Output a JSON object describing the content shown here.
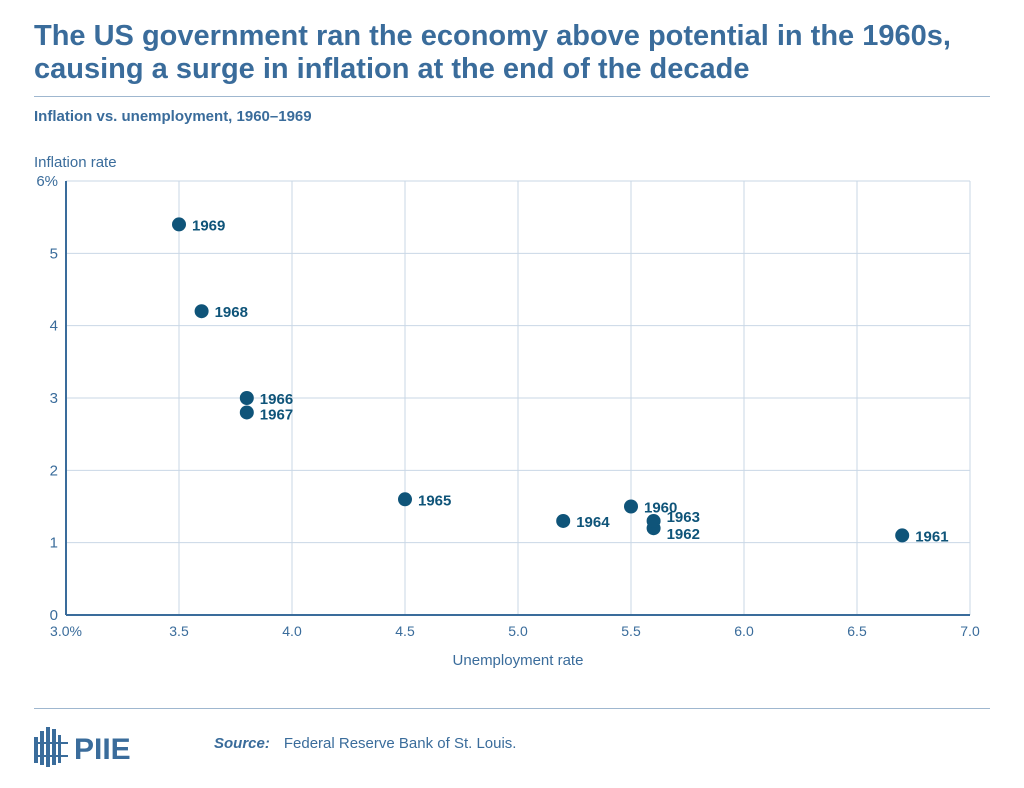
{
  "title": "The US government ran the economy above potential in the 1960s, causing a surge in inflation at the end of the decade",
  "subtitle": "Inflation vs. unemployment, 1960–1969",
  "colors": {
    "title": "#3a6c9b",
    "points": "#0f5479",
    "grid": "#c9d7e6"
  },
  "chart_data": {
    "type": "scatter",
    "xlabel": "Unemployment rate",
    "ylabel": "Inflation rate",
    "xlim": [
      3.0,
      7.0
    ],
    "ylim": [
      0,
      6
    ],
    "x_ticks": [
      3.0,
      3.5,
      4.0,
      4.5,
      5.0,
      5.5,
      6.0,
      6.5,
      7.0
    ],
    "x_tick_labels": [
      "3.0%",
      "3.5",
      "4.0",
      "4.5",
      "5.0",
      "5.5",
      "6.0",
      "6.5",
      "7.0"
    ],
    "y_ticks": [
      0,
      1,
      2,
      3,
      4,
      5,
      6
    ],
    "y_tick_labels": [
      "0",
      "1",
      "2",
      "3",
      "4",
      "5",
      "6%"
    ],
    "grid": true,
    "points": [
      {
        "label": "1960",
        "x": 5.5,
        "y": 1.5
      },
      {
        "label": "1961",
        "x": 6.7,
        "y": 1.1
      },
      {
        "label": "1962",
        "x": 5.6,
        "y": 1.2
      },
      {
        "label": "1963",
        "x": 5.6,
        "y": 1.3
      },
      {
        "label": "1964",
        "x": 5.2,
        "y": 1.3
      },
      {
        "label": "1965",
        "x": 4.5,
        "y": 1.6
      },
      {
        "label": "1966",
        "x": 3.8,
        "y": 3.0
      },
      {
        "label": "1967",
        "x": 3.8,
        "y": 2.8
      },
      {
        "label": "1968",
        "x": 3.6,
        "y": 4.2
      },
      {
        "label": "1969",
        "x": 3.5,
        "y": 5.4
      }
    ]
  },
  "footer": {
    "logo": "PIIE",
    "source_label": "Source:",
    "source_text": "Federal Reserve Bank of St. Louis."
  }
}
